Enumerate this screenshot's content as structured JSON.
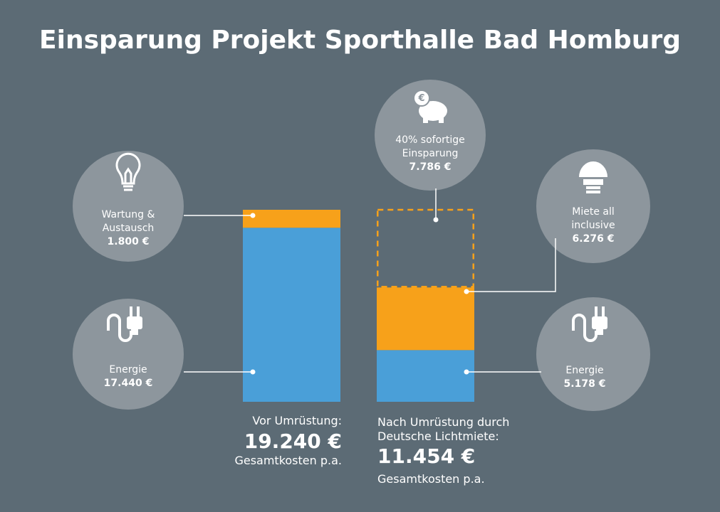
{
  "chart_data": {
    "type": "bar",
    "stacked": true,
    "title": "Einsparung Projekt Sporthalle Bad Homburg",
    "categories": [
      "Vor Umrüstung:",
      "Nach Umrüstung durch Deutsche Lichtmiete:"
    ],
    "series": [
      {
        "name": "Energie",
        "color": "#4a9fd8",
        "values": [
          17440,
          5178
        ],
        "value_labels": [
          "17.440 €",
          "5.178 €"
        ]
      },
      {
        "name": "Wartung & Austausch",
        "color": "#f7a11a",
        "values": [
          1800,
          null
        ],
        "value_labels": [
          "1.800 €",
          null
        ]
      },
      {
        "name": "Miete all inclusive",
        "color": "#f7a11a",
        "values": [
          null,
          6276
        ],
        "value_labels": [
          null,
          "6.276 €"
        ]
      },
      {
        "name": "40% sofortige Einsparung",
        "color": "#f7a11a",
        "dashed": true,
        "values": [
          null,
          7786
        ],
        "value_labels": [
          null,
          "7.786 €"
        ]
      }
    ],
    "totals": {
      "values": [
        19240,
        11454
      ],
      "value_labels": [
        "19.240 €",
        "11.454 €"
      ],
      "caption": "Gesamtkosten p.a."
    }
  }
}
